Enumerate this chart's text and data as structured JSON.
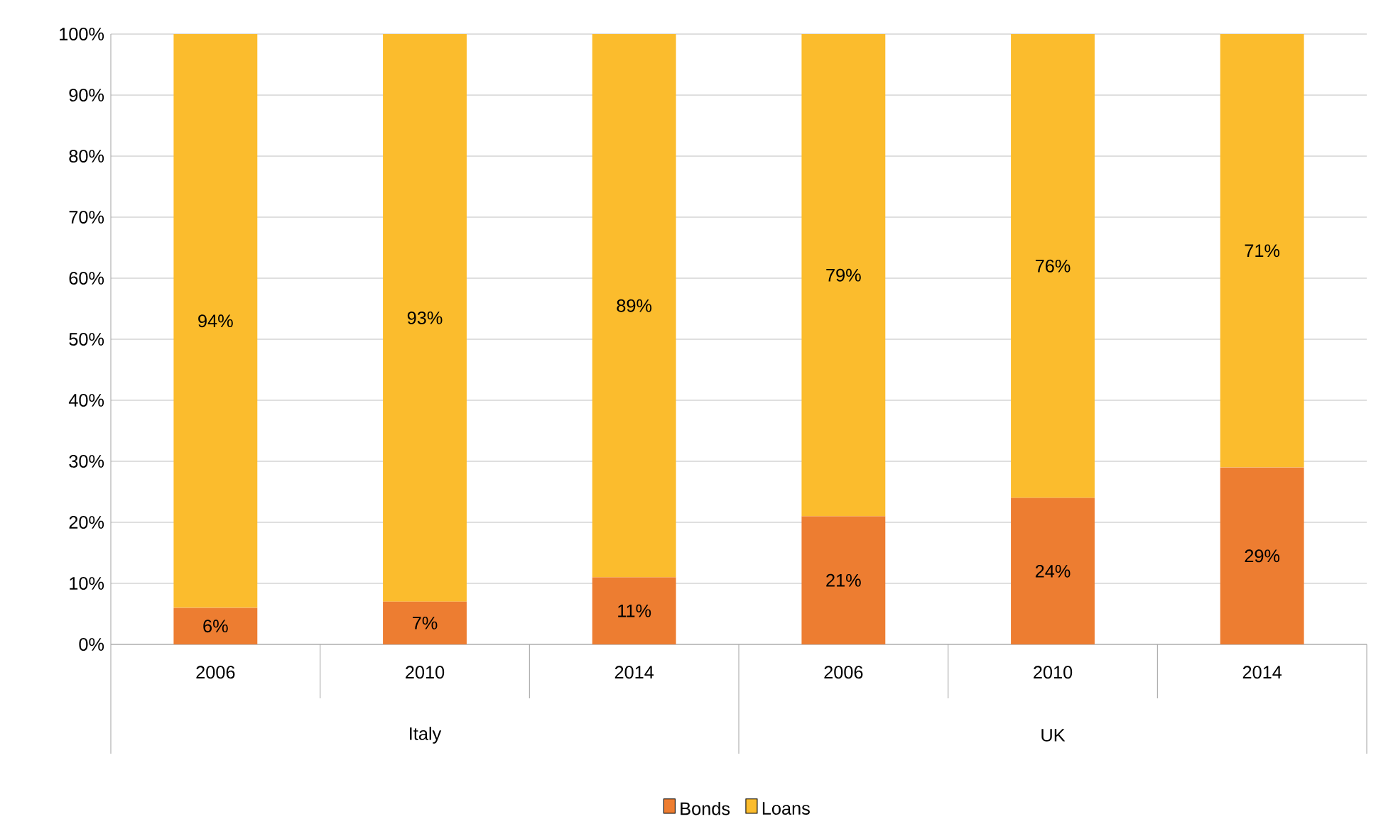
{
  "chart_data": {
    "type": "bar",
    "stacked": true,
    "categories": [
      "2006",
      "2010",
      "2014",
      "2006",
      "2010",
      "2014"
    ],
    "annotations": [
      "Italy",
      "UK"
    ],
    "series": [
      {
        "name": "Bonds",
        "color": "#ed7d31",
        "values": [
          6,
          7,
          11,
          21,
          24,
          29
        ],
        "value_labels": [
          "6%",
          "7%",
          "11%",
          "21%",
          "24%",
          "29%"
        ]
      },
      {
        "name": "Loans",
        "color": "#fbbc2d",
        "values": [
          94,
          93,
          89,
          79,
          76,
          71
        ],
        "value_labels": [
          "94%",
          "93%",
          "89%",
          "79%",
          "76%",
          "71%"
        ]
      }
    ],
    "ylim": [
      0,
      100
    ],
    "yticks": [
      {
        "value": 0,
        "label": "0%"
      },
      {
        "value": 10,
        "label": "10%"
      },
      {
        "value": 20,
        "label": "20%"
      },
      {
        "value": 30,
        "label": "30%"
      },
      {
        "value": 40,
        "label": "40%"
      },
      {
        "value": 50,
        "label": "50%"
      },
      {
        "value": 60,
        "label": "60%"
      },
      {
        "value": 70,
        "label": "70%"
      },
      {
        "value": 80,
        "label": "80%"
      },
      {
        "value": 90,
        "label": "90%"
      },
      {
        "value": 100,
        "label": "100%"
      }
    ],
    "grid": "y",
    "legend": "bottom"
  }
}
